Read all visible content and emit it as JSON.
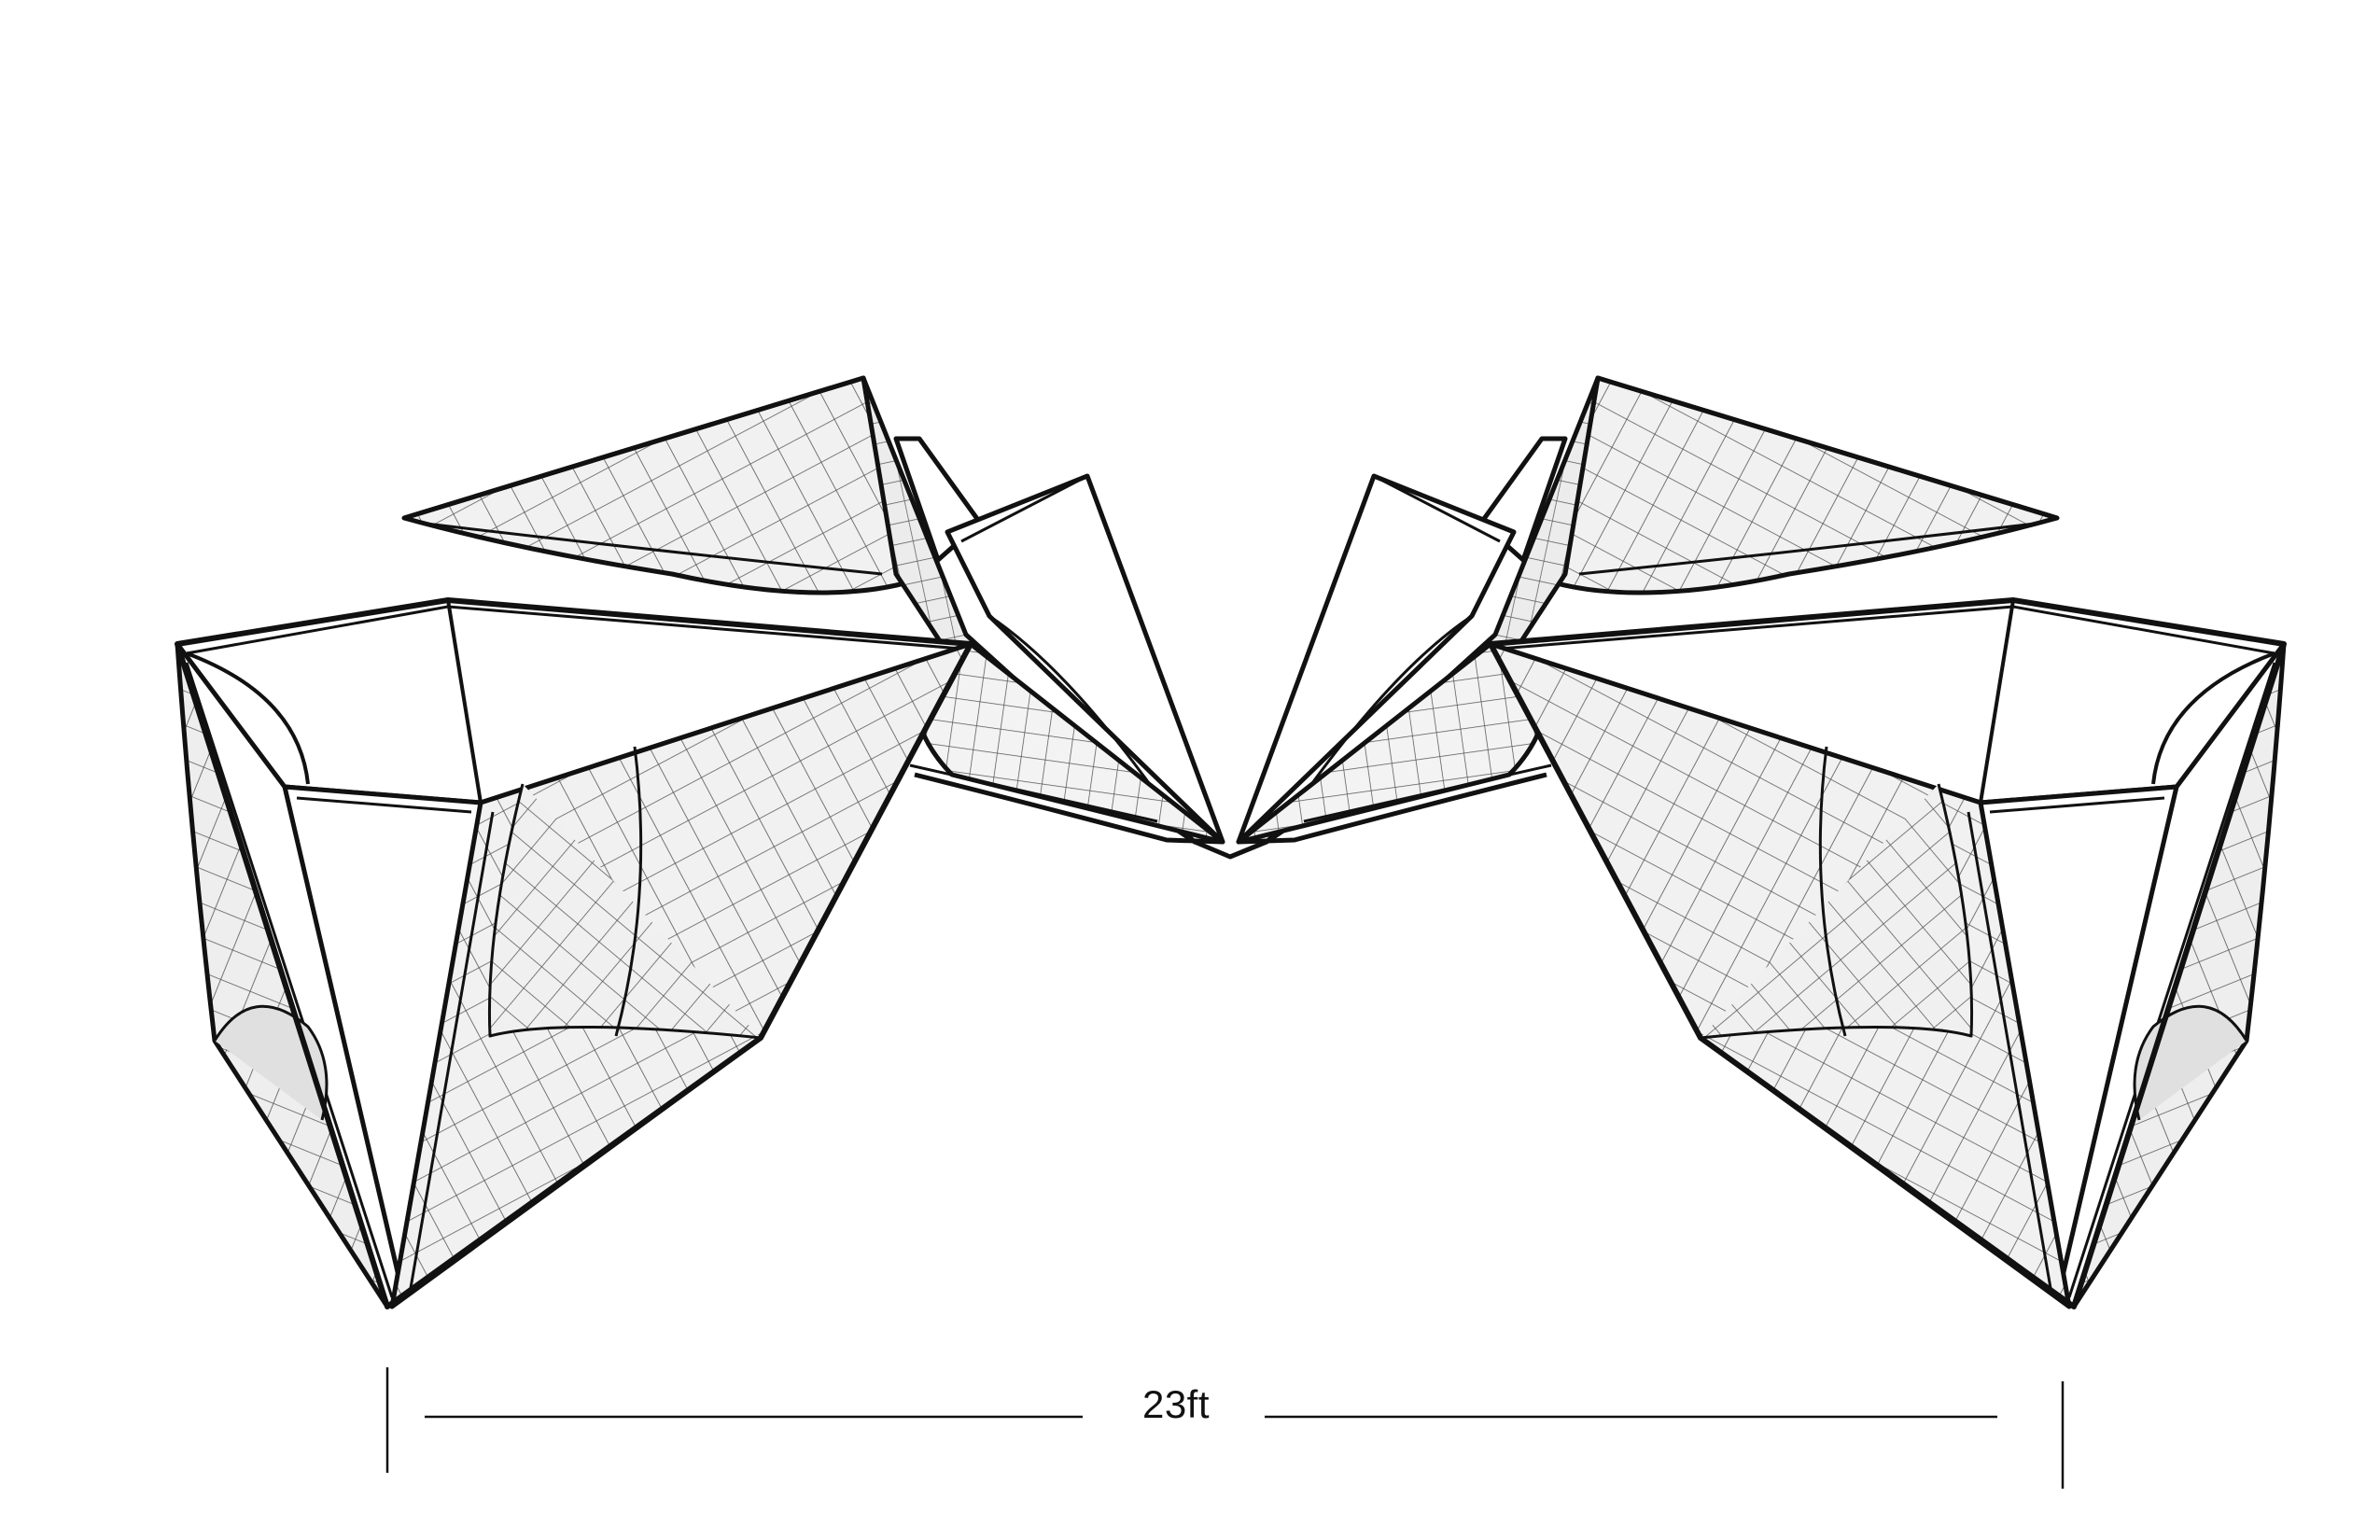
{
  "drawing": {
    "dimension_label": "23ft"
  },
  "colors": {
    "ink": "#111111",
    "panel_fill": "#f1f1f1",
    "panel_shade": "#dadada",
    "grid_line": "#555555",
    "background": "#ffffff"
  }
}
